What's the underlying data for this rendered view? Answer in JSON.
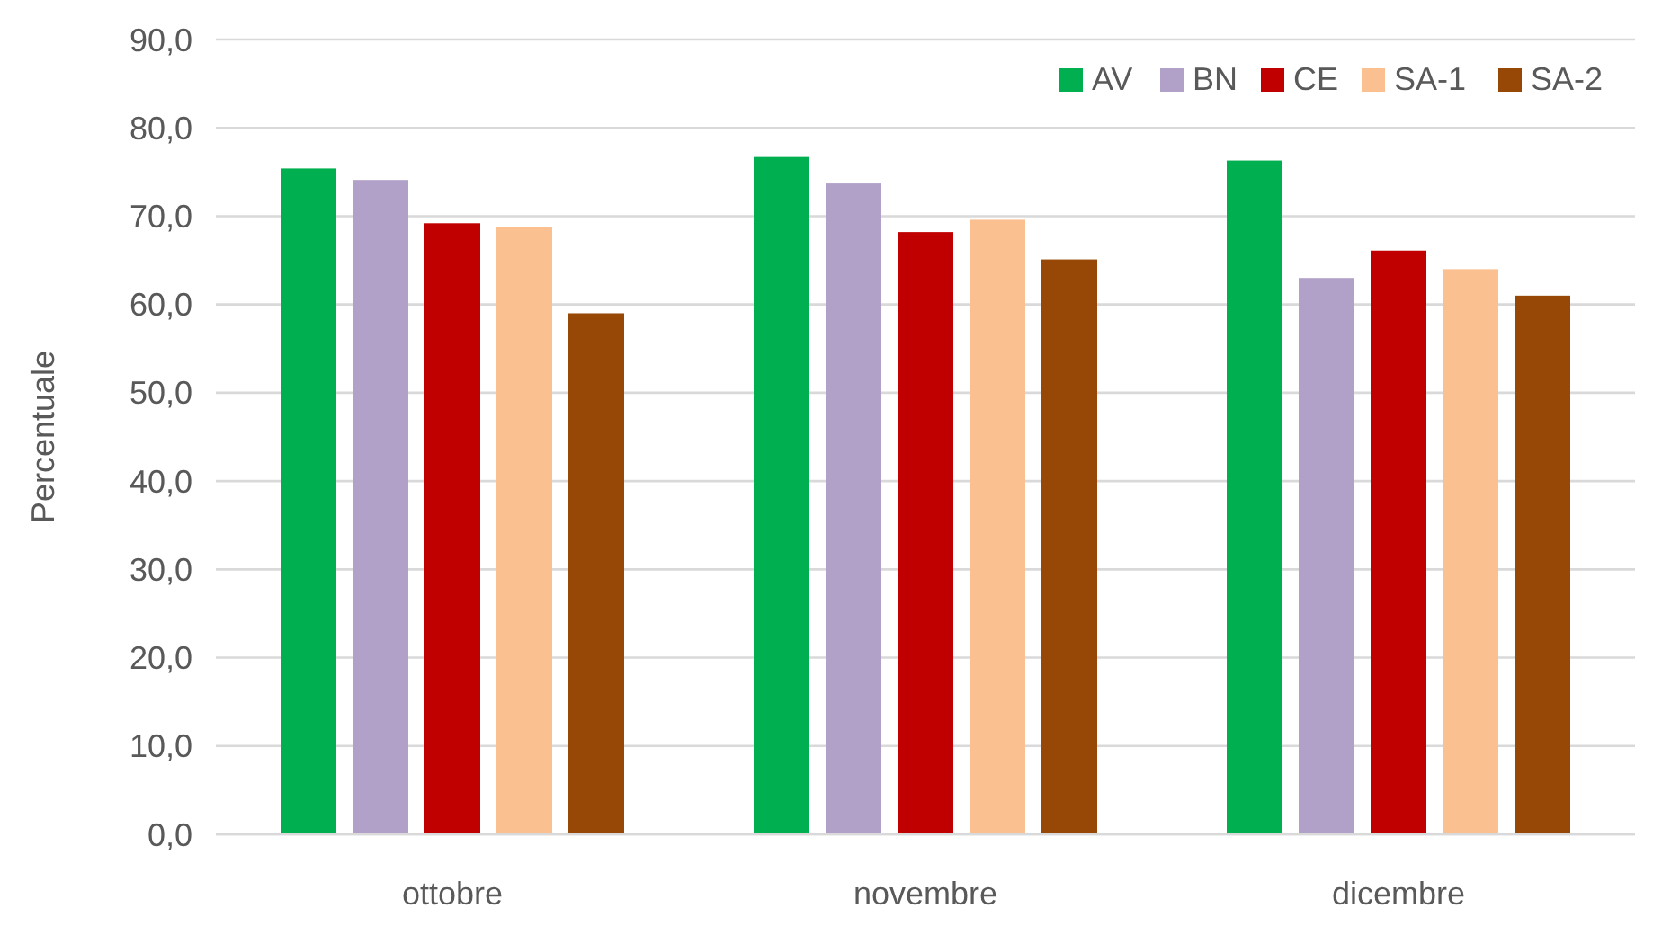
{
  "chart_data": {
    "type": "bar",
    "ylabel": "Percentuale",
    "categories": [
      "ottobre",
      "novembre",
      "dicembre"
    ],
    "series": [
      {
        "name": "AV",
        "color": "#00b050",
        "values": [
          75.4,
          76.7,
          76.3
        ]
      },
      {
        "name": "BN",
        "color": "#b1a0c7",
        "values": [
          74.1,
          73.7,
          63.0
        ]
      },
      {
        "name": "CE",
        "color": "#c00000",
        "values": [
          69.2,
          68.2,
          66.1
        ]
      },
      {
        "name": "SA-1",
        "color": "#fac090",
        "values": [
          68.8,
          69.6,
          64.0
        ]
      },
      {
        "name": "SA-2",
        "color": "#974706",
        "values": [
          59.0,
          65.1,
          61.0
        ]
      }
    ],
    "ylim": [
      0,
      90
    ],
    "yticks": [
      {
        "value": 0,
        "label": "0,0"
      },
      {
        "value": 10,
        "label": "10,0"
      },
      {
        "value": 20,
        "label": "20,0"
      },
      {
        "value": 30,
        "label": "30,0"
      },
      {
        "value": 40,
        "label": "40,0"
      },
      {
        "value": 50,
        "label": "50,0"
      },
      {
        "value": 60,
        "label": "60,0"
      },
      {
        "value": 70,
        "label": "70,0"
      },
      {
        "value": 80,
        "label": "80,0"
      },
      {
        "value": 90,
        "label": "90,0"
      }
    ],
    "grid": "y",
    "legend": "top right"
  }
}
